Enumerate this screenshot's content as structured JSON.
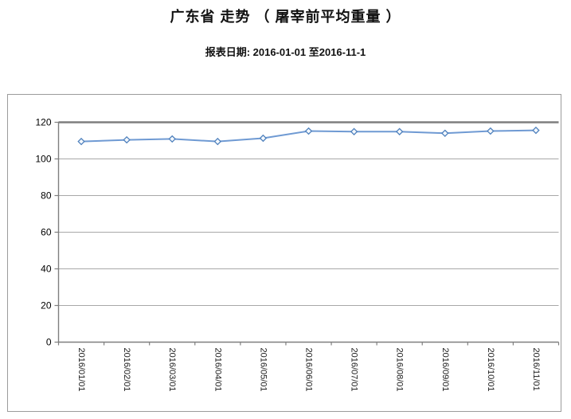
{
  "page": {
    "title": "广东省 走势 （ 屠宰前平均重量 ）",
    "subtitle": "报表日期: 2016-01-01 至2016-11-1"
  },
  "chart_data": {
    "type": "line",
    "title": "广东省 走势 （ 屠宰前平均重量 ）",
    "subtitle": "报表日期: 2016-01-01 至2016-11-1",
    "series": [
      {
        "name": "屠宰前平均重量",
        "values": [
          109.5,
          110.4,
          110.9,
          109.5,
          111.3,
          115.2,
          114.9,
          114.9,
          114.0,
          115.2,
          115.6
        ]
      }
    ],
    "categories": [
      "2016/01/01",
      "2016/02/01",
      "2016/03/01",
      "2016/04/01",
      "2016/05/01",
      "2016/06/01",
      "2016/07/01",
      "2016/08/01",
      "2016/09/01",
      "2016/10/01",
      "2016/11/01"
    ],
    "xlabel": "",
    "ylabel": "",
    "ylim": [
      0,
      120
    ],
    "yticks": [
      0,
      20,
      40,
      60,
      80,
      100,
      120
    ],
    "grid": true,
    "legend_position": "none",
    "marker": "diamond",
    "colors": {
      "line": "#6f9ad3",
      "marker_stroke": "#4f81bd",
      "marker_fill": "#f4f8fc",
      "gridline": "#a8a8a8",
      "gridline_strong": "#7f7f7f",
      "axis": "#7f7f7f",
      "label_text": "#000000",
      "frame_border": "#9b9b9b"
    }
  }
}
